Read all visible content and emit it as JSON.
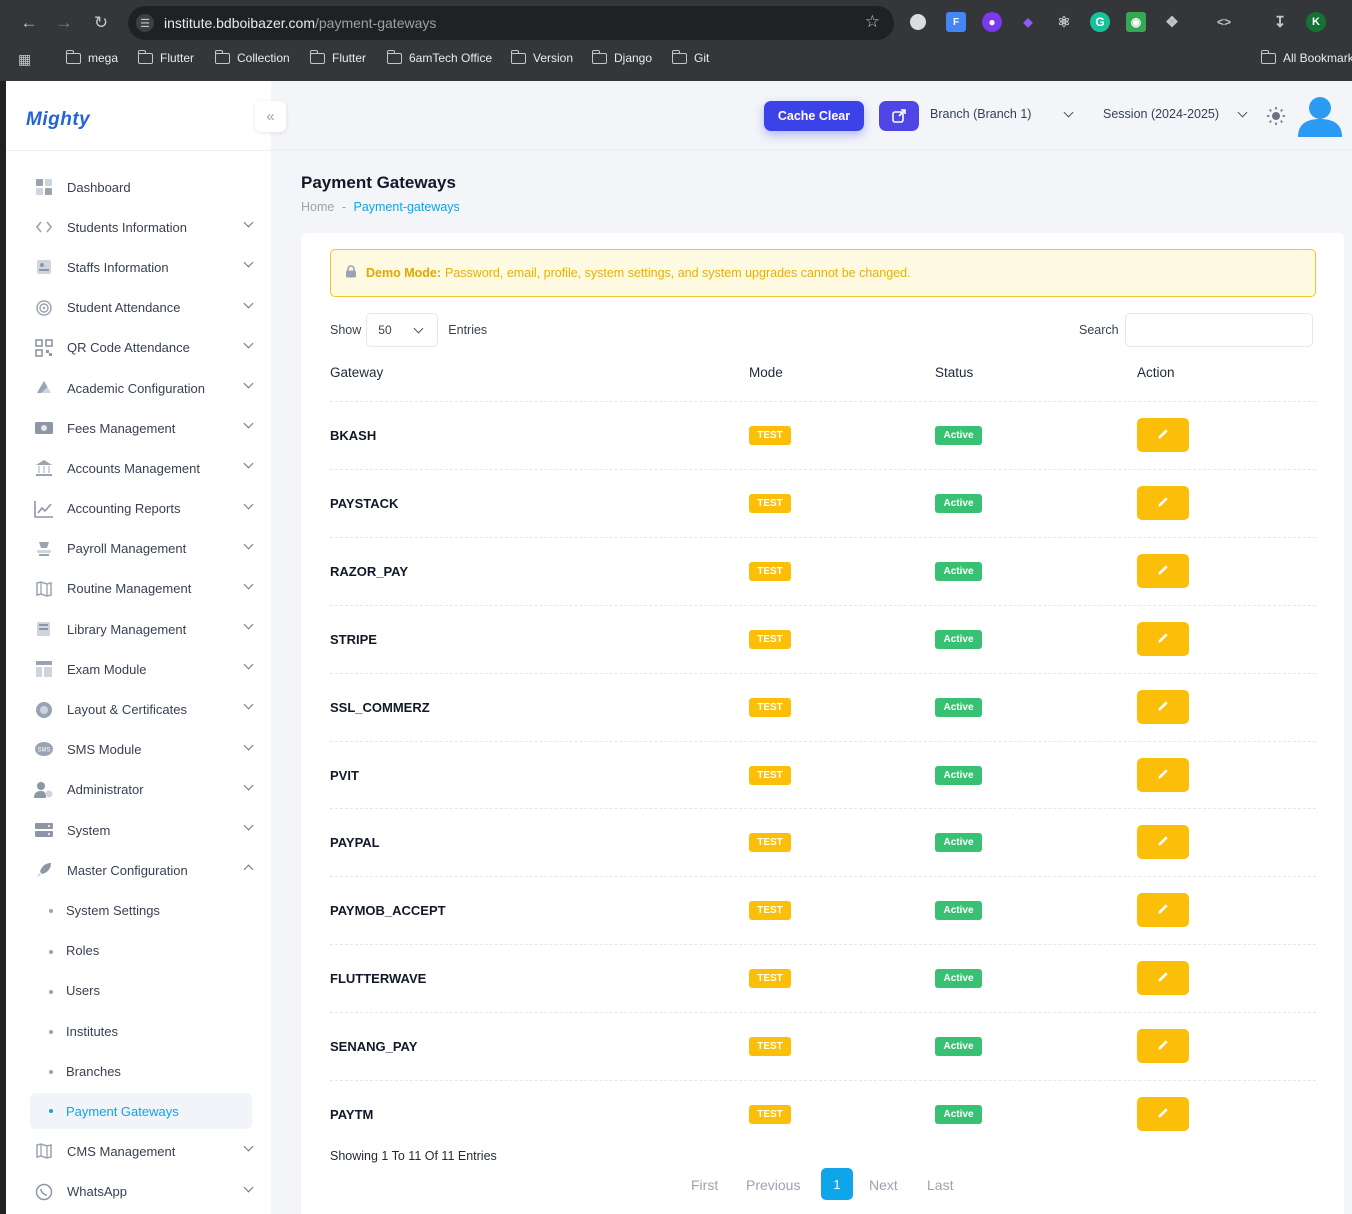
{
  "browser": {
    "url_host": "institute.bdboibazer.com",
    "url_path": "/payment-gateways",
    "bookmarks": [
      "mega",
      "Flutter",
      "Collection",
      "Flutter",
      "6amTech Office",
      "Version",
      "Django",
      "Git"
    ],
    "all_bookmarks": "All Bookmarks",
    "profile_initial": "K"
  },
  "brand": {
    "name": "Mighty",
    "color": "#2563d6"
  },
  "topbar": {
    "cache_clear": "Cache Clear",
    "branch": "Branch (Branch 1)",
    "session": "Session (2024-2025)"
  },
  "sidebar": {
    "items": [
      {
        "label": "Dashboard",
        "icon": "dashboard-icon"
      },
      {
        "label": "Students Information",
        "icon": "code-icon"
      },
      {
        "label": "Staffs Information",
        "icon": "id-card-icon"
      },
      {
        "label": "Student Attendance",
        "icon": "fingerprint-icon"
      },
      {
        "label": "QR Code Attendance",
        "icon": "qr-code-icon"
      },
      {
        "label": "Academic Configuration",
        "icon": "drive-icon"
      },
      {
        "label": "Fees Management",
        "icon": "money-icon"
      },
      {
        "label": "Accounts Management",
        "icon": "bank-icon"
      },
      {
        "label": "Accounting Reports",
        "icon": "chart-line-icon"
      },
      {
        "label": "Payroll Management",
        "icon": "payroll-icon"
      },
      {
        "label": "Routine Management",
        "icon": "map-icon"
      },
      {
        "label": "Library Management",
        "icon": "library-icon"
      },
      {
        "label": "Exam Module",
        "icon": "layout-icon"
      },
      {
        "label": "Layout & Certificates",
        "icon": "certificate-icon"
      },
      {
        "label": "SMS Module",
        "icon": "sms-icon"
      },
      {
        "label": "Administrator",
        "icon": "user-gear-icon"
      },
      {
        "label": "System",
        "icon": "server-icon"
      },
      {
        "label": "Master Configuration",
        "icon": "rocket-icon"
      }
    ],
    "master_sub": [
      "System Settings",
      "Roles",
      "Users",
      "Institutes",
      "Branches",
      "Payment Gateways"
    ],
    "bottom_items": [
      {
        "label": "CMS Management",
        "icon": "map-icon"
      },
      {
        "label": "WhatsApp",
        "icon": "whatsapp-icon"
      }
    ]
  },
  "page": {
    "title": "Payment Gateways",
    "breadcrumb_home": "Home",
    "breadcrumb_sep": "-",
    "breadcrumb_current": "Payment-gateways"
  },
  "alert": {
    "label": "Demo Mode:",
    "text": "Password, email, profile, system settings, and system upgrades cannot be changed."
  },
  "table": {
    "show_label": "Show",
    "entries_value": "50",
    "entries_label": "Entries",
    "search_label": "Search",
    "headers": [
      "Gateway",
      "Mode",
      "Status",
      "Action"
    ],
    "rows": [
      {
        "gateway": "BKASH",
        "mode": "TEST",
        "status": "Active"
      },
      {
        "gateway": "PAYSTACK",
        "mode": "TEST",
        "status": "Active"
      },
      {
        "gateway": "RAZOR_PAY",
        "mode": "TEST",
        "status": "Active"
      },
      {
        "gateway": "STRIPE",
        "mode": "TEST",
        "status": "Active"
      },
      {
        "gateway": "SSL_COMMERZ",
        "mode": "TEST",
        "status": "Active"
      },
      {
        "gateway": "PVIT",
        "mode": "TEST",
        "status": "Active"
      },
      {
        "gateway": "PAYPAL",
        "mode": "TEST",
        "status": "Active"
      },
      {
        "gateway": "PAYMOB_ACCEPT",
        "mode": "TEST",
        "status": "Active"
      },
      {
        "gateway": "FLUTTERWAVE",
        "mode": "TEST",
        "status": "Active"
      },
      {
        "gateway": "SENANG_PAY",
        "mode": "TEST",
        "status": "Active"
      },
      {
        "gateway": "PAYTM",
        "mode": "TEST",
        "status": "Active"
      }
    ],
    "summary": "Showing 1 To 11 Of 11 Entries"
  },
  "pagination": {
    "first": "First",
    "previous": "Previous",
    "current": "1",
    "next": "Next",
    "last": "Last"
  },
  "colors": {
    "accent": "#0ea5e9",
    "primary": "#3b43e8",
    "warning": "#fbbf09",
    "success": "#38c172"
  }
}
